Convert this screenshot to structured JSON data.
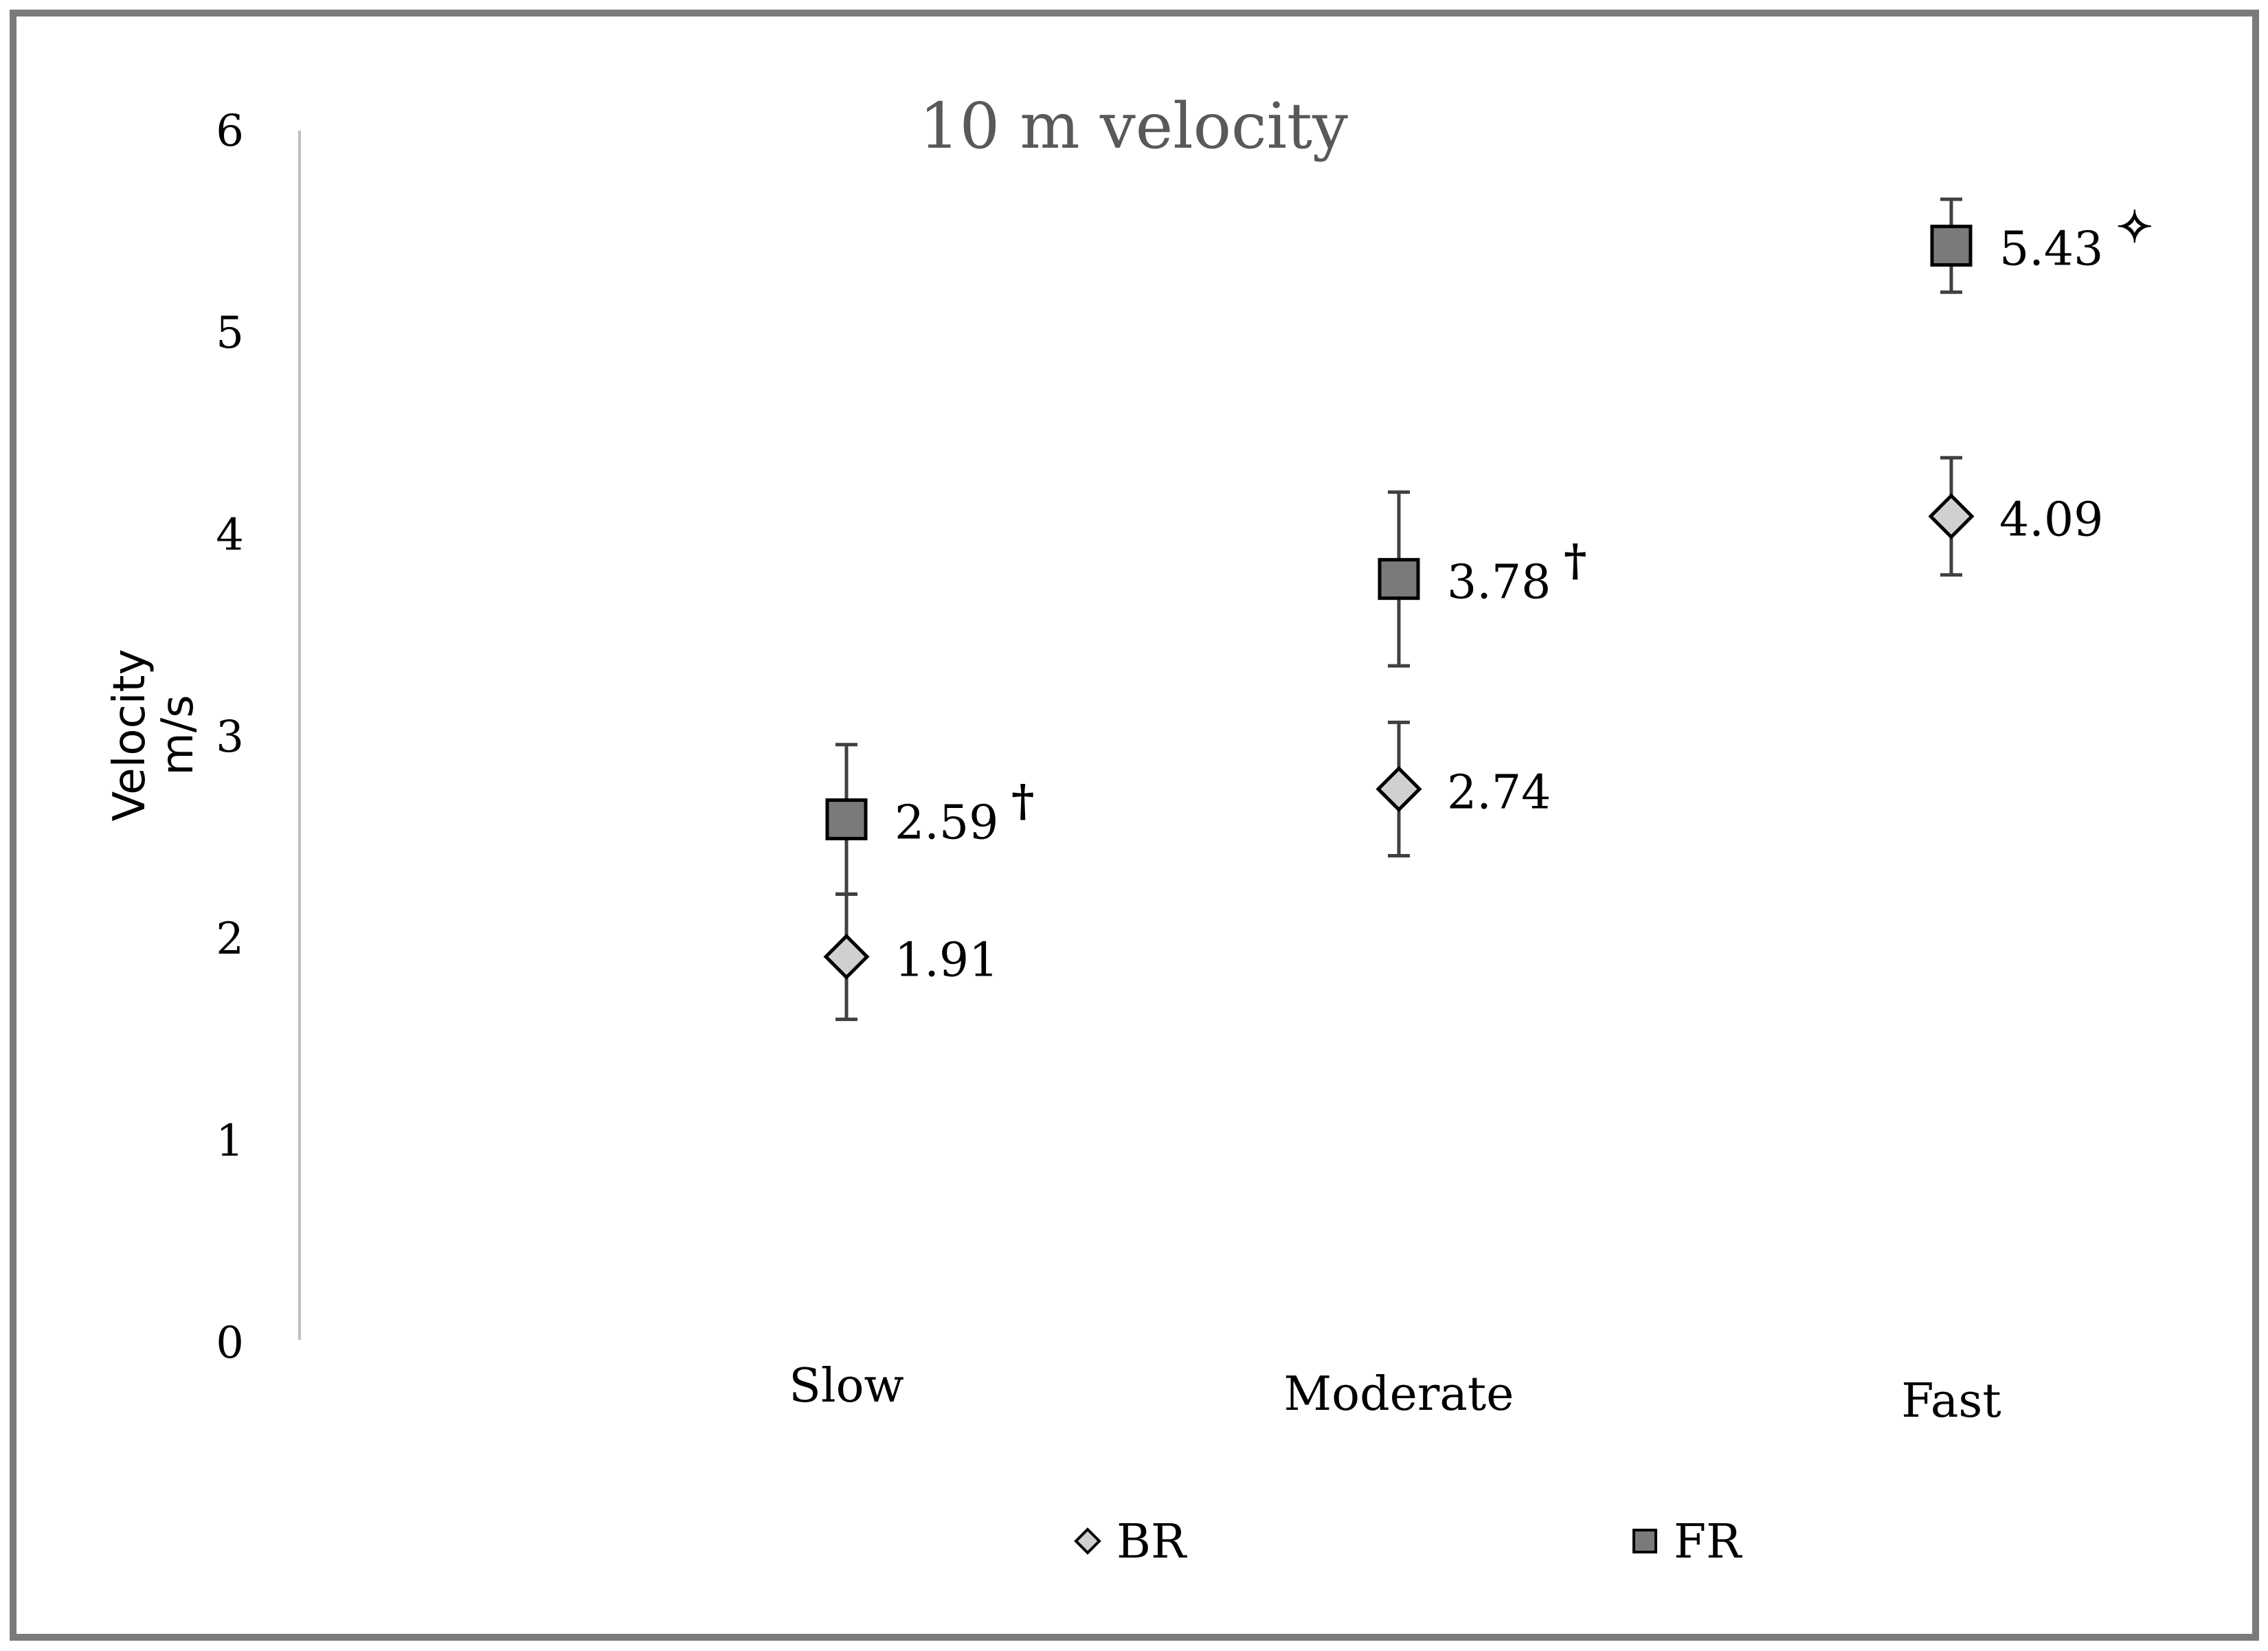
{
  "chart_data": {
    "type": "scatter",
    "title": "10 m velocity",
    "ylabel_line1": "Velocity",
    "ylabel_line2": "m/s",
    "xlabel": "",
    "ylim": [
      0,
      6
    ],
    "yticks": [
      0,
      1,
      2,
      3,
      4,
      5,
      6
    ],
    "categories": [
      "Slow",
      "Moderate",
      "Fast"
    ],
    "grid": false,
    "legend_position": "bottom",
    "series": [
      {
        "name": "BR",
        "marker": "diamond",
        "color": "#d0d0d0",
        "values": [
          1.91,
          2.74,
          4.09
        ],
        "labels": [
          "1.91",
          "2.74",
          "4.09"
        ],
        "error": [
          0.31,
          0.33,
          0.29
        ],
        "significance": [
          "",
          "",
          ""
        ]
      },
      {
        "name": "FR",
        "marker": "square",
        "color": "#7a7a7a",
        "values": [
          2.59,
          3.78,
          5.43
        ],
        "labels": [
          "2.59",
          "3.78",
          "5.43"
        ],
        "error": [
          0.37,
          0.43,
          0.23
        ],
        "significance": [
          "†",
          "†",
          "✧"
        ]
      }
    ]
  }
}
